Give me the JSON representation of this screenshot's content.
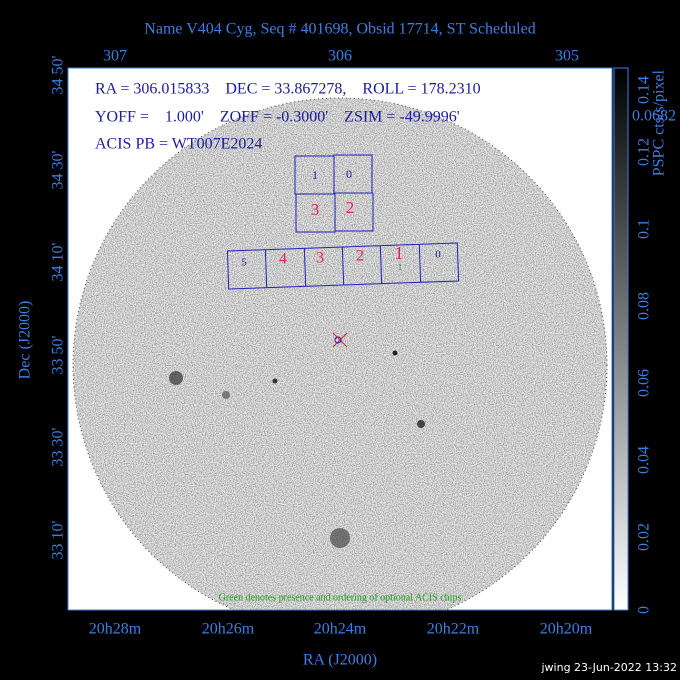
{
  "title": "Name V404 Cyg, Seq # 401698, Obsid 17714, ST Scheduled",
  "top_axis_labels": [
    "307",
    "306",
    "305"
  ],
  "left_axis_labels": [
    "34 50'",
    "34 30'",
    "34 10'",
    "33 50'",
    "33 30'",
    "33 10'"
  ],
  "bottom_axis_labels": [
    "20h28m",
    "20h26m",
    "20h24m",
    "20h22m",
    "20h20m"
  ],
  "y_axis_title": "Dec (J2000)",
  "x_axis_title": "RA (J2000)",
  "colorbar": {
    "ticks": [
      "0",
      "0.02",
      "0.04",
      "0.06",
      "0.08",
      "0.1",
      "0.12",
      "0.14"
    ],
    "label": "PSPC cts/s/pixel",
    "readout": "0.0682"
  },
  "info": [
    "RA = 306.015833    DEC = 33.867278,    ROLL = 178.2310",
    "YOFF =    1.000'    ZOFF = -0.3000'    ZSIM = -49.9996'",
    "ACIS PB = WT007E2024"
  ],
  "chips": {
    "acis_i": [
      "1",
      "0",
      "3",
      "2"
    ],
    "acis_s": [
      "5",
      "4",
      "3",
      "2",
      "1",
      "0"
    ],
    "optional": "1"
  },
  "note": "Green denotes presence and ordering of optional ACIS chips",
  "footer": "jwing 23-Jun-2022 13:32"
}
